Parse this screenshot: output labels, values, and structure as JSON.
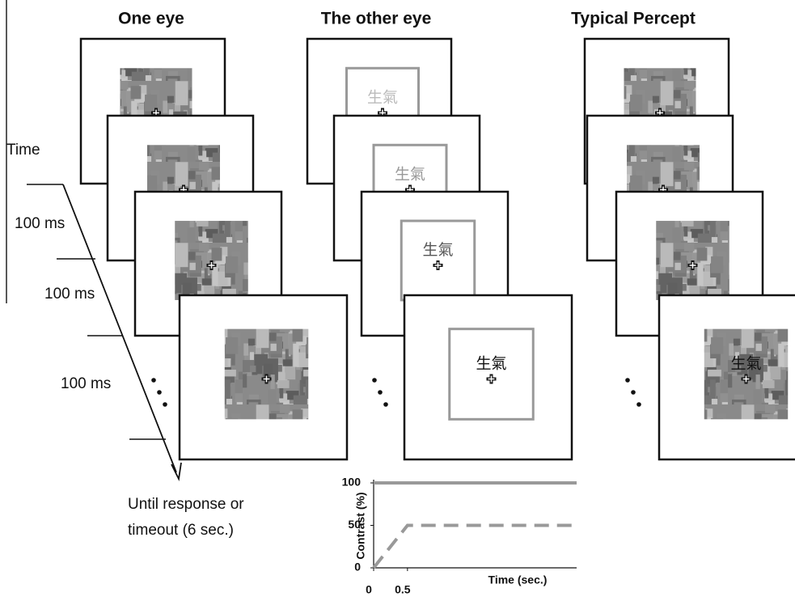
{
  "columns": [
    {
      "title": "One eye"
    },
    {
      "title": "The other eye",
      "labels": [
        "生氣",
        "生氣",
        "生氣",
        "生氣"
      ]
    },
    {
      "title": "Typical Percept",
      "label": "生氣"
    }
  ],
  "timeline": {
    "time_label": "Time",
    "durations": [
      "100 ms",
      "100 ms",
      "100 ms"
    ],
    "final": [
      "Until response or",
      "timeout (6 sec.)"
    ]
  },
  "chart_data": {
    "type": "line",
    "ylabel": "Contrast (%)",
    "xlabel": "Time (sec.)",
    "xlim": [
      0,
      3
    ],
    "ylim": [
      0,
      100
    ],
    "xticks": [
      0,
      0.5
    ],
    "yticks": [
      0,
      50,
      100
    ],
    "series": [
      {
        "color": "#999999",
        "dash": false,
        "x": [
          0,
          3
        ],
        "values": [
          100,
          100
        ]
      },
      {
        "color": "#999999",
        "dash": true,
        "x": [
          0,
          0.5,
          3
        ],
        "values": [
          0,
          50,
          50
        ]
      }
    ]
  }
}
